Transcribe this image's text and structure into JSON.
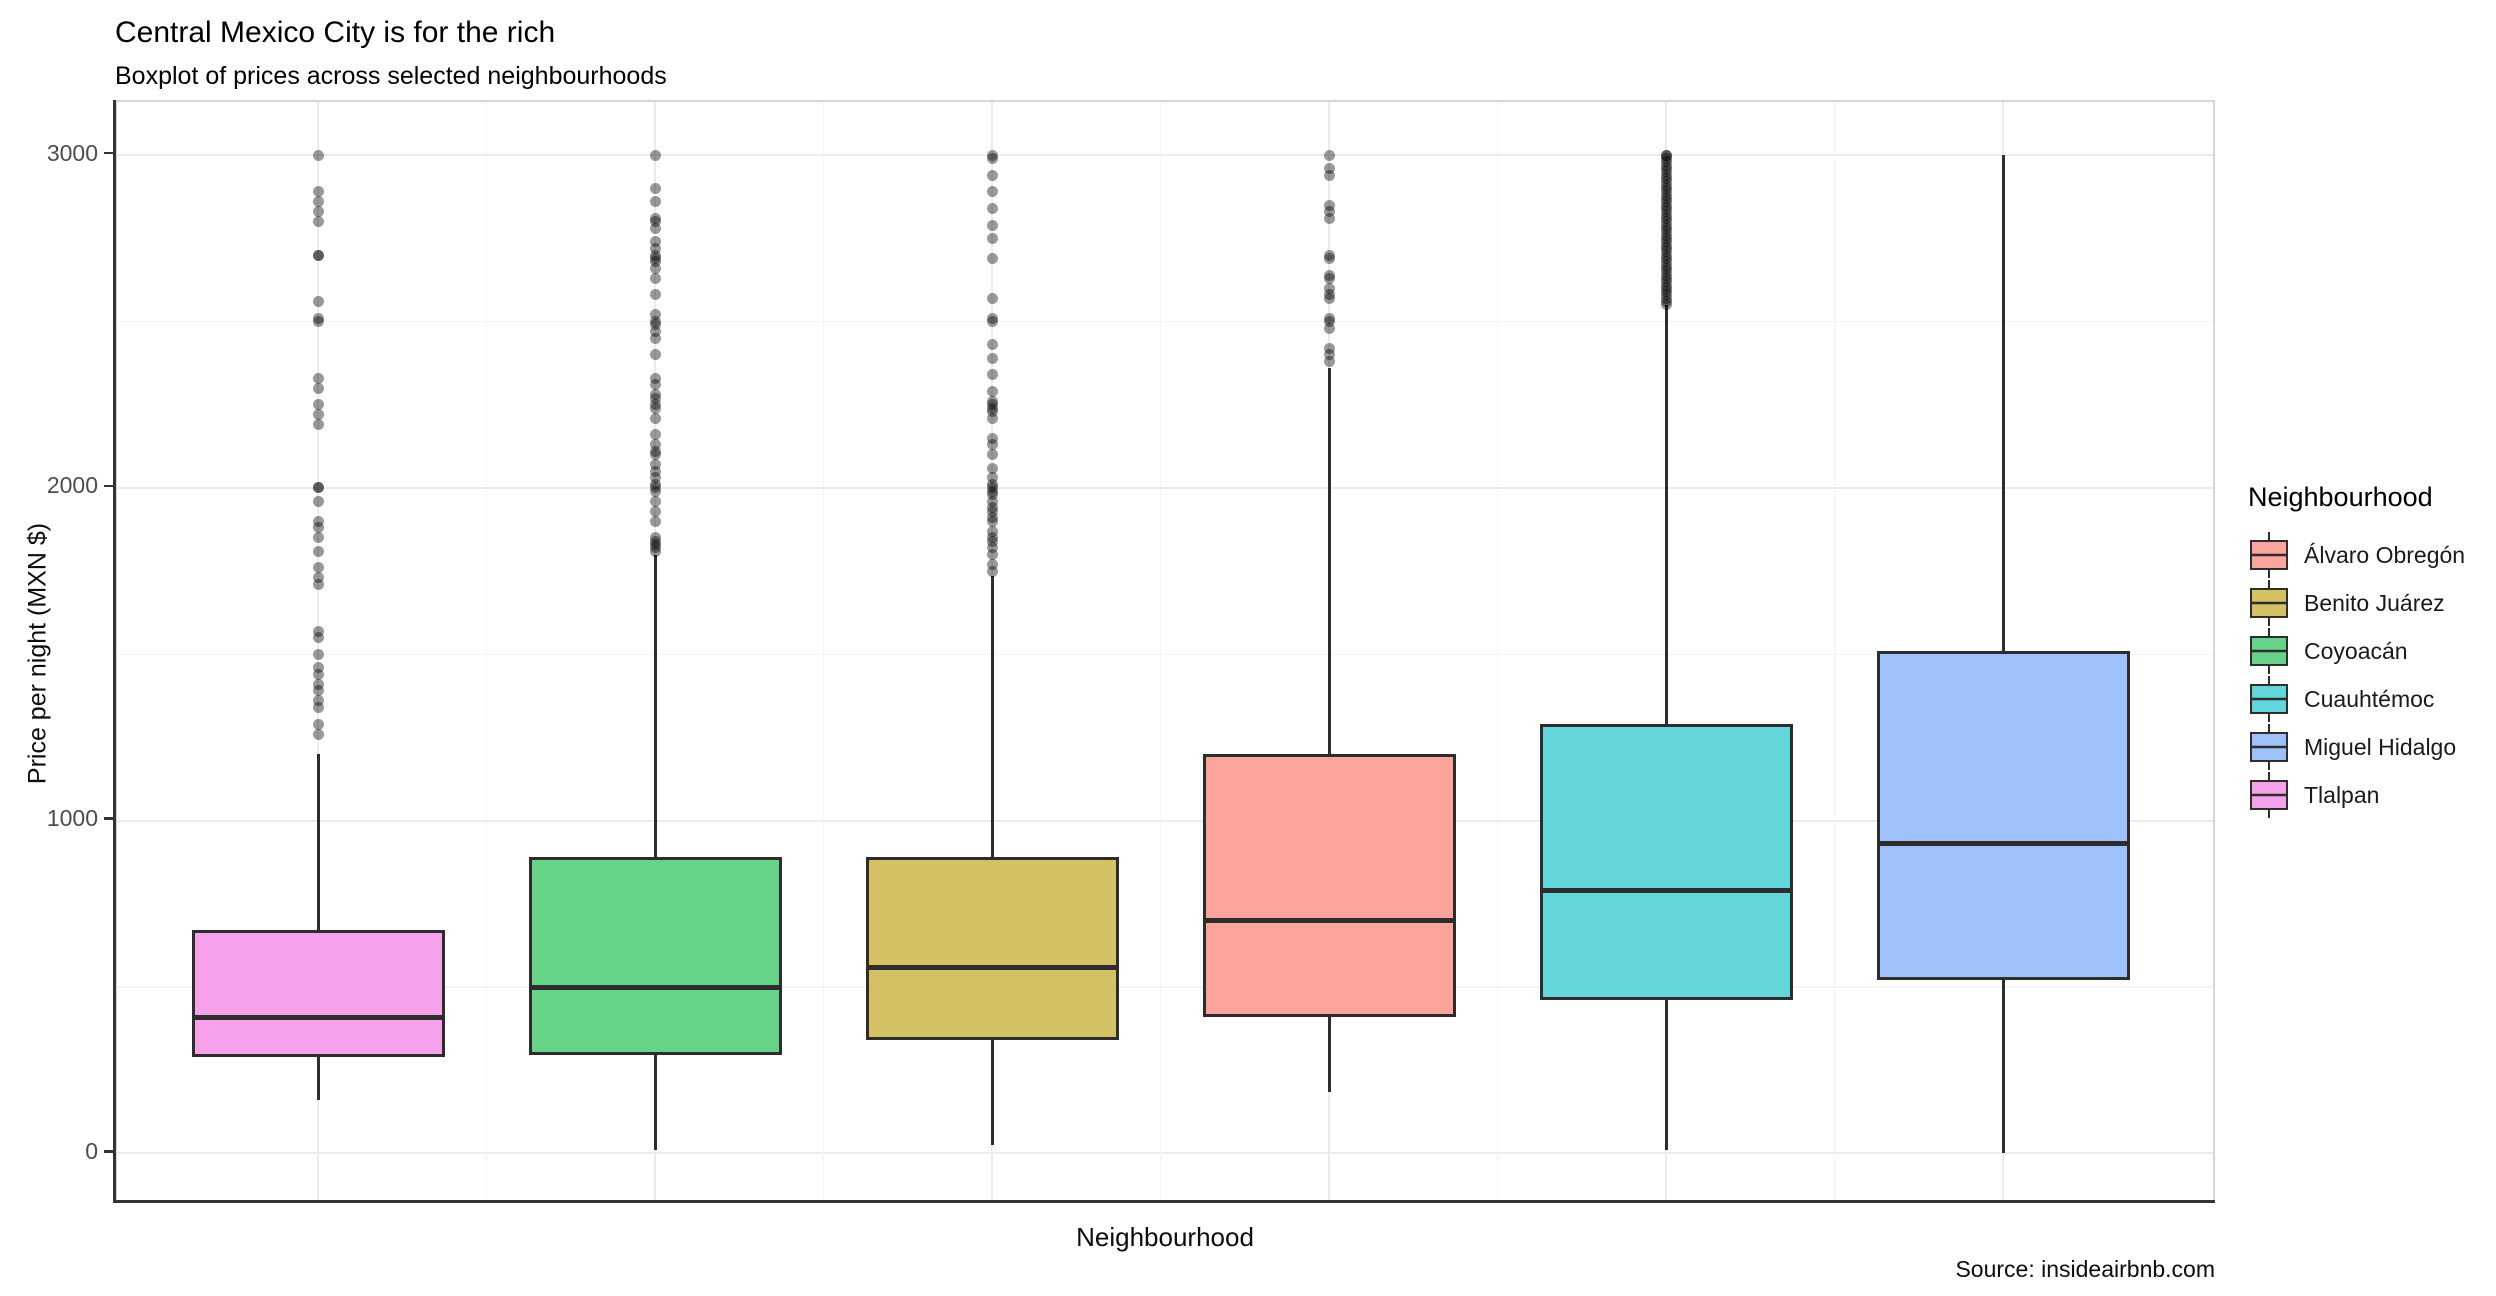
{
  "header": {
    "title": "Central Mexico City is for the rich",
    "subtitle": "Boxplot of prices across selected neighbourhoods"
  },
  "legend": {
    "title": "Neighbourhood",
    "items": [
      {
        "label": "Álvaro Obregón",
        "color": "#FAA49B"
      },
      {
        "label": "Benito Juárez",
        "color": "#D3C164"
      },
      {
        "label": "Coyoacán",
        "color": "#67D389"
      },
      {
        "label": "Cuauhtémoc",
        "color": "#63D6DC"
      },
      {
        "label": "Miguel Hidalgo",
        "color": "#9EC1FA"
      },
      {
        "label": "Tlalpan",
        "color": "#F6A1EB"
      }
    ]
  },
  "chart_data": {
    "type": "boxplot",
    "title": "Central Mexico City is for the rich",
    "subtitle": "Boxplot of prices across selected neighbourhoods",
    "xlabel": "Neighbourhood",
    "ylabel": "Price per night (MXN $)",
    "caption": "Source: insideairbnb.com",
    "y_ticks": [
      0,
      1000,
      2000,
      3000
    ],
    "y_minor_gridlines": [
      500,
      1500,
      2500
    ],
    "y_domain": [
      -155,
      3160
    ],
    "grid": "on",
    "legend_position": "right",
    "style": {
      "box_stroke": "#2d2d2d",
      "major_grid": "#ebebeb",
      "minor_grid": "#f4f4f4",
      "axis_line": "#333333",
      "tick_text": "#4d4d4d",
      "outlier_alpha": 0.4
    },
    "groups": [
      {
        "name": "Tlalpan",
        "color": "#F6A1EB",
        "stats": {
          "whisker_low": 160,
          "q1": 290,
          "median": 410,
          "q3": 670,
          "whisker_high": 1200
        },
        "outliers": [
          3000,
          2890,
          2860,
          2830,
          2800,
          2700,
          2700,
          2560,
          2510,
          2500,
          2330,
          2300,
          2250,
          2220,
          2190,
          2000,
          2000,
          1960,
          1900,
          1880,
          1850,
          1810,
          1760,
          1730,
          1710,
          1570,
          1550,
          1500,
          1460,
          1440,
          1410,
          1390,
          1360,
          1340,
          1290,
          1260
        ]
      },
      {
        "name": "Coyoacán",
        "color": "#67D389",
        "stats": {
          "whisker_low": 10,
          "q1": 295,
          "median": 500,
          "q3": 890,
          "whisker_high": 1800
        },
        "outliers": [
          3000,
          2900,
          2860,
          2810,
          2800,
          2780,
          2740,
          2720,
          2700,
          2690,
          2680,
          2660,
          2630,
          2580,
          2520,
          2500,
          2490,
          2470,
          2450,
          2400,
          2330,
          2310,
          2280,
          2270,
          2250,
          2240,
          2210,
          2160,
          2130,
          2110,
          2100,
          2070,
          2050,
          2030,
          2010,
          2000,
          1990,
          1960,
          1930,
          1900,
          1850,
          1840,
          1830,
          1820,
          1810
        ]
      },
      {
        "name": "Benito Juárez",
        "color": "#D3C164",
        "stats": {
          "whisker_low": 25,
          "q1": 340,
          "median": 560,
          "q3": 890,
          "whisker_high": 1735
        },
        "outliers": [
          3000,
          2990,
          2940,
          2890,
          2840,
          2790,
          2750,
          2690,
          2570,
          2510,
          2500,
          2430,
          2390,
          2340,
          2290,
          2260,
          2250,
          2240,
          2230,
          2210,
          2150,
          2130,
          2100,
          2060,
          2030,
          2010,
          2000,
          1990,
          1980,
          1960,
          1940,
          1930,
          1910,
          1900,
          1870,
          1850,
          1840,
          1820,
          1800,
          1770,
          1750
        ]
      },
      {
        "name": "Álvaro Obregón",
        "color": "#FAA49B",
        "stats": {
          "whisker_low": 185,
          "q1": 410,
          "median": 700,
          "q3": 1200,
          "whisker_high": 2360
        },
        "outliers": [
          3000,
          2960,
          2940,
          2850,
          2830,
          2810,
          2700,
          2690,
          2640,
          2630,
          2600,
          2580,
          2570,
          2510,
          2500,
          2480,
          2420,
          2400,
          2380
        ]
      },
      {
        "name": "Cuauhtémoc",
        "color": "#63D6DC",
        "stats": {
          "whisker_low": 10,
          "q1": 460,
          "median": 790,
          "q3": 1290,
          "whisker_high": 2550
        },
        "outliers": [
          3000,
          3000,
          2990,
          2980,
          2970,
          2960,
          2950,
          2940,
          2930,
          2920,
          2910,
          2900,
          2890,
          2880,
          2870,
          2860,
          2850,
          2840,
          2830,
          2820,
          2810,
          2800,
          2790,
          2780,
          2770,
          2760,
          2750,
          2740,
          2730,
          2720,
          2710,
          2700,
          2690,
          2680,
          2670,
          2660,
          2650,
          2640,
          2630,
          2620,
          2610,
          2600,
          2590,
          2580,
          2570,
          2560,
          2550
        ]
      },
      {
        "name": "Miguel Hidalgo",
        "color": "#9EC1FA",
        "stats": {
          "whisker_low": 0,
          "q1": 520,
          "median": 930,
          "q3": 1510,
          "whisker_high": 3000
        },
        "outliers": []
      }
    ]
  }
}
